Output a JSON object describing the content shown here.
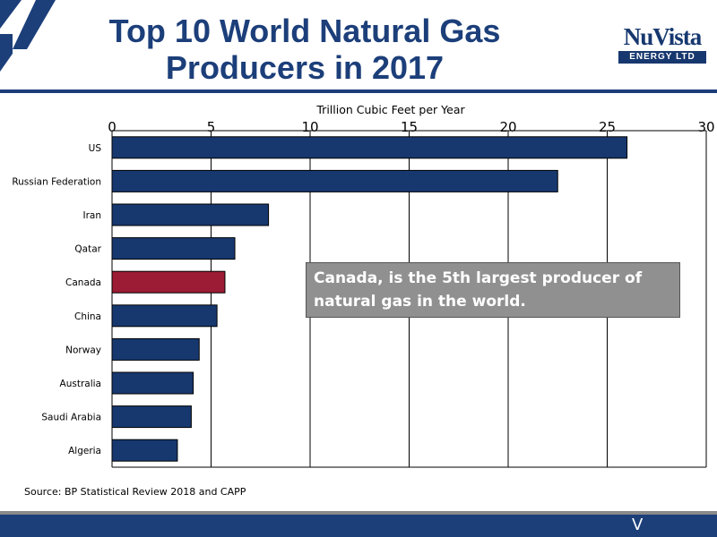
{
  "header": {
    "title_line1": "Top 10 World Natural Gas",
    "title_line2": "Producers in 2017",
    "logo_main": "NuVista",
    "logo_sub": "ENERGY LTD"
  },
  "colors": {
    "brand_navy": "#1c3f7a",
    "bar_default": "#17386f",
    "bar_highlight": "#9b1c34",
    "callout_bg": "#909090"
  },
  "chart_data": {
    "type": "bar",
    "orientation": "horizontal",
    "xlabel": "Trillion Cubic Feet per Year",
    "xlim": [
      0,
      30
    ],
    "xticks": [
      0,
      5,
      10,
      15,
      20,
      25,
      30
    ],
    "grid": "vertical",
    "categories": [
      "US",
      "Russian Federation",
      "Iran",
      "Qatar",
      "Canada",
      "China",
      "Norway",
      "Australia",
      "Saudi Arabia",
      "Algeria"
    ],
    "values": [
      26.0,
      22.5,
      7.9,
      6.2,
      5.7,
      5.3,
      4.4,
      4.1,
      4.0,
      3.3
    ],
    "highlight": "Canada"
  },
  "annotation": {
    "line1": "Canada, is the 5th largest producer of",
    "line2": "natural gas in the world."
  },
  "source": "Source: BP Statistical Review 2018 and CAPP",
  "footer": {
    "mark": "V"
  }
}
